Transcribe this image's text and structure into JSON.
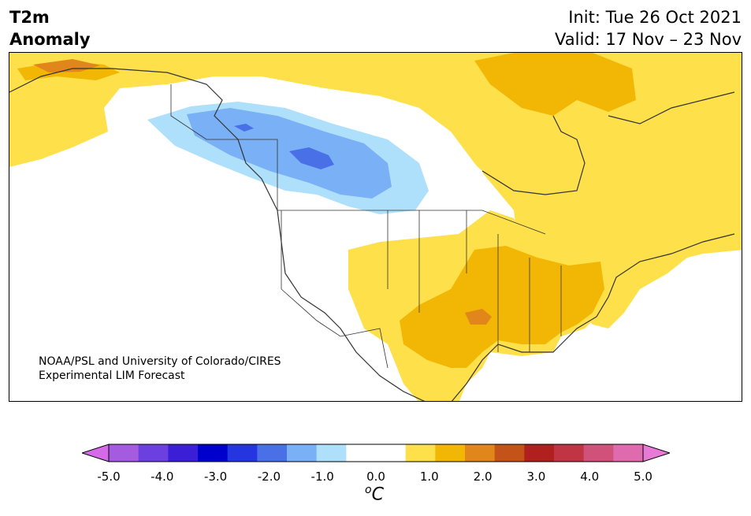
{
  "title": {
    "variable": "T2m",
    "quantity": "Anomaly",
    "init": "Init: Tue 26 Oct 2021",
    "valid": "Valid: 17 Nov – 23 Nov"
  },
  "credit": {
    "line1": "NOAA/PSL and University of Colorado/CIRES",
    "line2": "Experimental LIM Forecast"
  },
  "colorbar": {
    "units_base": "C",
    "units_sup": "o",
    "tick_labels": [
      "-5.0",
      "-4.0",
      "-3.0",
      "-2.0",
      "-1.0",
      "0.0",
      "1.0",
      "2.0",
      "3.0",
      "4.0",
      "5.0"
    ],
    "colors": {
      "under": "#d46ae8",
      "over": "#e67ad6",
      "bins": [
        "#a45be0",
        "#6b3fe0",
        "#3a1fd6",
        "#0000cc",
        "#2535e0",
        "#4a70e8",
        "#7ab0f5",
        "#aee0fc",
        "#ffffff",
        "#ffffff",
        "#fde04a",
        "#f2b705",
        "#e0861a",
        "#c4531a",
        "#b0201e",
        "#c03444",
        "#d0527a",
        "#e06aae"
      ]
    }
  },
  "map": {
    "region": "North America",
    "anomaly_colors": {
      "cold_weak": "#aee0fc",
      "cold_mod": "#7ab0f5",
      "cold_strong": "#4a70e8",
      "warm_weak": "#fde04a",
      "warm_mod": "#f2b705",
      "warm_strong": "#e0861a",
      "warm_very": "#c4531a"
    }
  }
}
